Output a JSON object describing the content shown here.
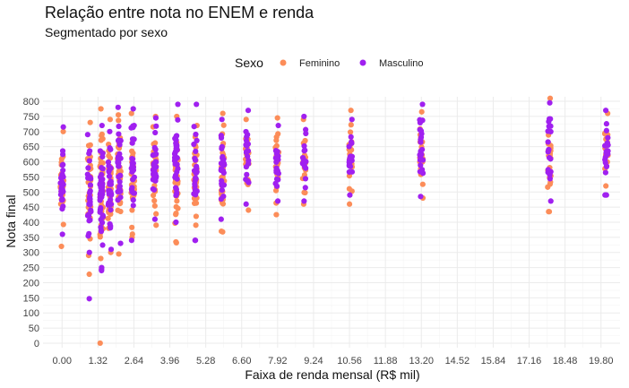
{
  "chart_data": {
    "type": "scatter",
    "title": "Relação entre nota no ENEM e renda",
    "subtitle": "Segmentado por sexo",
    "xlabel": "Faixa de renda mensal (R$ mil)",
    "ylabel": "Nota final",
    "xlim": [
      -0.7,
      20.5
    ],
    "ylim": [
      -15,
      815
    ],
    "x_ticks": [
      0.0,
      1.32,
      2.64,
      3.96,
      5.28,
      6.6,
      7.92,
      9.24,
      10.56,
      11.88,
      13.2,
      14.52,
      15.84,
      17.16,
      18.48,
      19.8
    ],
    "x_tick_labels": [
      "0.00",
      "1.32",
      "2.64",
      "3.96",
      "5.28",
      "6.60",
      "7.92",
      "9.24",
      "10.56",
      "11.88",
      "13.20",
      "14.52",
      "15.84",
      "17.16",
      "18.48",
      "19.80"
    ],
    "y_ticks": [
      0,
      50,
      100,
      150,
      200,
      250,
      300,
      350,
      400,
      450,
      500,
      550,
      600,
      650,
      700,
      750,
      800
    ],
    "grid": true,
    "legend": {
      "title": "Sexo",
      "position": "top"
    },
    "series": [
      {
        "name": "Feminino",
        "color": "#fc8d59",
        "groups": [
          {
            "x": 0.0,
            "min": 320,
            "max": 700,
            "count": 38
          },
          {
            "x": 1.0,
            "min": 290,
            "max": 730,
            "count": 30
          },
          {
            "x": 1.45,
            "min": 280,
            "max": 775,
            "count": 45
          },
          {
            "x": 1.75,
            "min": 300,
            "max": 740,
            "count": 35
          },
          {
            "x": 2.1,
            "min": 295,
            "max": 755,
            "count": 35
          },
          {
            "x": 2.6,
            "min": 350,
            "max": 760,
            "count": 35
          },
          {
            "x": 3.4,
            "min": 390,
            "max": 750,
            "count": 32
          },
          {
            "x": 4.2,
            "min": 335,
            "max": 750,
            "count": 40
          },
          {
            "x": 4.9,
            "min": 390,
            "max": 720,
            "count": 30
          },
          {
            "x": 5.9,
            "min": 370,
            "max": 760,
            "count": 32
          },
          {
            "x": 6.8,
            "min": 440,
            "max": 740,
            "count": 22
          },
          {
            "x": 7.9,
            "min": 425,
            "max": 745,
            "count": 20
          },
          {
            "x": 8.9,
            "min": 460,
            "max": 740,
            "count": 18
          },
          {
            "x": 10.6,
            "min": 460,
            "max": 770,
            "count": 20
          },
          {
            "x": 13.2,
            "min": 480,
            "max": 765,
            "count": 22
          },
          {
            "x": 17.9,
            "min": 435,
            "max": 810,
            "count": 22
          },
          {
            "x": 20.0,
            "min": 520,
            "max": 760,
            "count": 20
          }
        ],
        "points": [
          {
            "x": 1.4,
            "y": 0
          },
          {
            "x": 1.0,
            "y": 228
          },
          {
            "x": 17.9,
            "y": 435
          },
          {
            "x": 5.9,
            "y": 368
          },
          {
            "x": 4.2,
            "y": 332
          }
        ]
      },
      {
        "name": "Masculino",
        "color": "#a020f0",
        "groups": [
          {
            "x": 0.0,
            "min": 360,
            "max": 715,
            "count": 30
          },
          {
            "x": 1.0,
            "min": 300,
            "max": 690,
            "count": 30
          },
          {
            "x": 1.45,
            "min": 250,
            "max": 720,
            "count": 40
          },
          {
            "x": 1.75,
            "min": 310,
            "max": 700,
            "count": 32
          },
          {
            "x": 2.1,
            "min": 330,
            "max": 780,
            "count": 32
          },
          {
            "x": 2.6,
            "min": 340,
            "max": 775,
            "count": 30
          },
          {
            "x": 3.4,
            "min": 410,
            "max": 745,
            "count": 30
          },
          {
            "x": 4.2,
            "min": 400,
            "max": 790,
            "count": 35
          },
          {
            "x": 4.9,
            "min": 340,
            "max": 790,
            "count": 28
          },
          {
            "x": 5.9,
            "min": 410,
            "max": 740,
            "count": 28
          },
          {
            "x": 6.8,
            "min": 460,
            "max": 770,
            "count": 22
          },
          {
            "x": 7.9,
            "min": 470,
            "max": 720,
            "count": 20
          },
          {
            "x": 8.9,
            "min": 470,
            "max": 750,
            "count": 18
          },
          {
            "x": 10.6,
            "min": 490,
            "max": 740,
            "count": 18
          },
          {
            "x": 13.2,
            "min": 485,
            "max": 790,
            "count": 22
          },
          {
            "x": 17.9,
            "min": 470,
            "max": 795,
            "count": 22
          },
          {
            "x": 20.0,
            "min": 490,
            "max": 770,
            "count": 20
          }
        ],
        "points": [
          {
            "x": 1.0,
            "y": 147
          },
          {
            "x": 1.45,
            "y": 240
          },
          {
            "x": 1.45,
            "y": 245
          },
          {
            "x": 4.9,
            "y": 340
          },
          {
            "x": 20.0,
            "y": 490
          }
        ]
      }
    ]
  }
}
